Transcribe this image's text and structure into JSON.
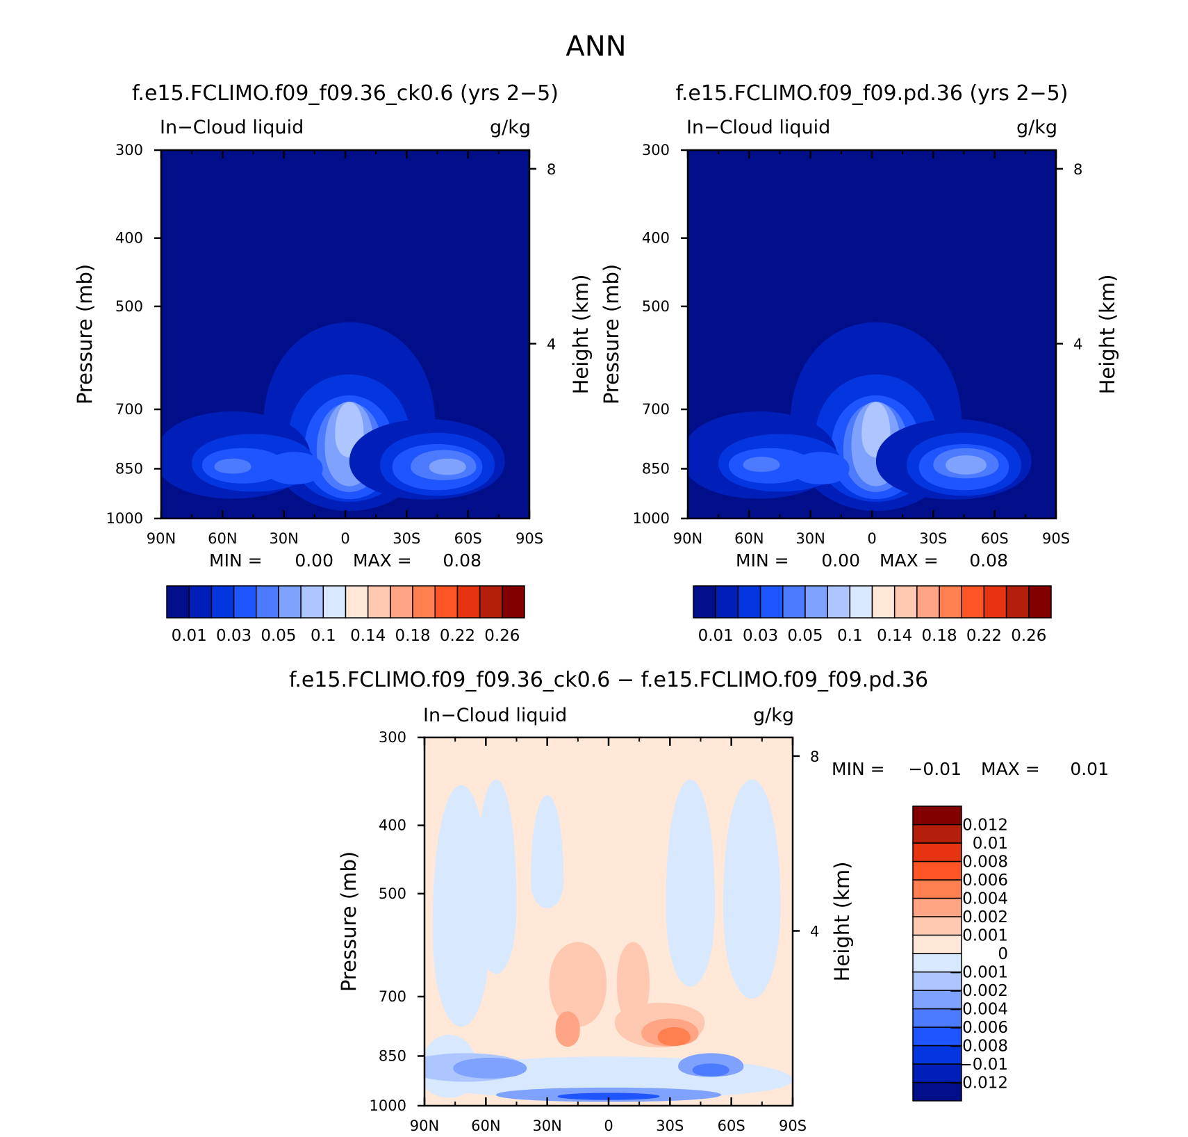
{
  "figure": {
    "title": "ANN",
    "colors": {
      "abs_scale": [
        "#000f89",
        "#001fb8",
        "#0436e0",
        "#1f55ff",
        "#4d7bff",
        "#7fa2ff",
        "#adc6ff",
        "#d7e8ff",
        "#ffe8d8",
        "#ffc8b0",
        "#ffa585",
        "#ff7f51",
        "#ff5526",
        "#e63410",
        "#b41f0c",
        "#820000"
      ],
      "diff_scale": [
        "#000f89",
        "#001fb8",
        "#0436e0",
        "#1f55ff",
        "#4d7bff",
        "#7fa2ff",
        "#adc6ff",
        "#d7e8ff",
        "#ffe8d8",
        "#ffc8b0",
        "#ffa585",
        "#ff7f51",
        "#ff5526",
        "#e63410",
        "#b41f0c",
        "#820000"
      ]
    }
  },
  "chart_data": [
    {
      "type": "heatmap",
      "id": "test",
      "title": "f.e15.FCLIMO.f09_f09.36_ck0.6 (yrs 2−5)",
      "left_string": "In−Cloud liquid",
      "right_string": "g/kg",
      "xlabel": "",
      "ylabel": "Pressure (mb)",
      "y2label": "Height (km)",
      "x_ticks": [
        "90N",
        "60N",
        "30N",
        "0",
        "30S",
        "60S",
        "90S"
      ],
      "x_range": [
        90,
        -90
      ],
      "y_ticks": [
        300,
        400,
        500,
        700,
        850,
        1000
      ],
      "y_range": [
        300,
        1000
      ],
      "y_scale": "log",
      "y2_ticks": [
        8,
        4
      ],
      "min_label": "MIN =",
      "min_value": "0.00",
      "max_label": "MAX =",
      "max_value": "0.08",
      "colorbar_labels": [
        "0.01",
        "0.03",
        "0.05",
        "0.1",
        "0.14",
        "0.18",
        "0.22",
        "0.26"
      ],
      "background_level": 0,
      "features": [
        {
          "lat": -2,
          "p": 740,
          "level": 1,
          "rx": 42,
          "rtop": 270,
          "rbot": 330
        },
        {
          "lat": -2,
          "p": 780,
          "level": 2,
          "rx": 30,
          "rtop": 200,
          "rbot": 230
        },
        {
          "lat": -2,
          "p": 800,
          "level": 3,
          "rx": 22,
          "rtop": 170,
          "rbot": 190
        },
        {
          "lat": -2,
          "p": 800,
          "level": 4,
          "rx": 16,
          "rtop": 150,
          "rbot": 160
        },
        {
          "lat": -2,
          "p": 790,
          "level": 5,
          "rx": 12,
          "rtop": 140,
          "rbot": 150
        },
        {
          "lat": -2,
          "p": 760,
          "level": 6,
          "rx": 7,
          "rtop": 100,
          "rbot": 80
        },
        {
          "lat": -40,
          "p": 830,
          "level": 1,
          "rx": 38,
          "rtop": 140,
          "rbot": 150
        },
        {
          "lat": -45,
          "p": 840,
          "level": 2,
          "rx": 28,
          "rtop": 110,
          "rbot": 120
        },
        {
          "lat": -45,
          "p": 845,
          "level": 3,
          "rx": 22,
          "rtop": 80,
          "rbot": 90
        },
        {
          "lat": -48,
          "p": 845,
          "level": 4,
          "rx": 16,
          "rtop": 60,
          "rbot": 50
        },
        {
          "lat": -50,
          "p": 845,
          "level": 5,
          "rx": 9,
          "rtop": 30,
          "rbot": 30
        },
        {
          "lat": 55,
          "p": 820,
          "level": 1,
          "rx": 38,
          "rtop": 150,
          "rbot": 160
        },
        {
          "lat": 45,
          "p": 835,
          "level": 2,
          "rx": 30,
          "rtop": 100,
          "rbot": 110
        },
        {
          "lat": 50,
          "p": 840,
          "level": 3,
          "rx": 20,
          "rtop": 60,
          "rbot": 70
        },
        {
          "lat": 55,
          "p": 845,
          "level": 4,
          "rx": 9,
          "rtop": 30,
          "rbot": 25
        },
        {
          "lat": 25,
          "p": 850,
          "level": 3,
          "rx": 14,
          "rtop": 60,
          "rbot": 60
        }
      ]
    },
    {
      "type": "heatmap",
      "id": "control",
      "title": "f.e15.FCLIMO.f09_f09.pd.36 (yrs 2−5)",
      "left_string": "In−Cloud liquid",
      "right_string": "g/kg",
      "xlabel": "",
      "ylabel": "Pressure (mb)",
      "y2label": "Height (km)",
      "x_ticks": [
        "90N",
        "60N",
        "30N",
        "0",
        "30S",
        "60S",
        "90S"
      ],
      "x_range": [
        90,
        -90
      ],
      "y_ticks": [
        300,
        400,
        500,
        700,
        850,
        1000
      ],
      "y_range": [
        300,
        1000
      ],
      "y_scale": "log",
      "y2_ticks": [
        8,
        4
      ],
      "min_label": "MIN =",
      "min_value": "0.00",
      "max_label": "MAX =",
      "max_value": "0.08",
      "colorbar_labels": [
        "0.01",
        "0.03",
        "0.05",
        "0.1",
        "0.14",
        "0.18",
        "0.22",
        "0.26"
      ],
      "background_level": 0,
      "features": [
        {
          "lat": -2,
          "p": 740,
          "level": 1,
          "rx": 42,
          "rtop": 270,
          "rbot": 330
        },
        {
          "lat": -2,
          "p": 780,
          "level": 2,
          "rx": 30,
          "rtop": 200,
          "rbot": 230
        },
        {
          "lat": -2,
          "p": 800,
          "level": 3,
          "rx": 22,
          "rtop": 170,
          "rbot": 190
        },
        {
          "lat": -2,
          "p": 800,
          "level": 4,
          "rx": 16,
          "rtop": 150,
          "rbot": 160
        },
        {
          "lat": -2,
          "p": 790,
          "level": 5,
          "rx": 12,
          "rtop": 140,
          "rbot": 150
        },
        {
          "lat": -2,
          "p": 760,
          "level": 6,
          "rx": 7,
          "rtop": 100,
          "rbot": 80
        },
        {
          "lat": -40,
          "p": 830,
          "level": 1,
          "rx": 38,
          "rtop": 140,
          "rbot": 150
        },
        {
          "lat": -45,
          "p": 840,
          "level": 2,
          "rx": 28,
          "rtop": 110,
          "rbot": 120
        },
        {
          "lat": -45,
          "p": 845,
          "level": 3,
          "rx": 22,
          "rtop": 80,
          "rbot": 90
        },
        {
          "lat": -46,
          "p": 840,
          "level": 4,
          "rx": 16,
          "rtop": 60,
          "rbot": 50
        },
        {
          "lat": -46,
          "p": 840,
          "level": 5,
          "rx": 10,
          "rtop": 35,
          "rbot": 35
        },
        {
          "lat": 55,
          "p": 820,
          "level": 1,
          "rx": 38,
          "rtop": 150,
          "rbot": 160
        },
        {
          "lat": 45,
          "p": 835,
          "level": 2,
          "rx": 30,
          "rtop": 100,
          "rbot": 110
        },
        {
          "lat": 50,
          "p": 840,
          "level": 3,
          "rx": 20,
          "rtop": 60,
          "rbot": 70
        },
        {
          "lat": 54,
          "p": 840,
          "level": 4,
          "rx": 9,
          "rtop": 30,
          "rbot": 25
        },
        {
          "lat": 25,
          "p": 850,
          "level": 3,
          "rx": 14,
          "rtop": 60,
          "rbot": 60
        }
      ]
    },
    {
      "type": "heatmap",
      "id": "difference",
      "title": "f.e15.FCLIMO.f09_f09.36_ck0.6 − f.e15.FCLIMO.f09_f09.pd.36",
      "left_string": "In−Cloud liquid",
      "right_string": "g/kg",
      "xlabel": "",
      "ylabel": "Pressure (mb)",
      "y2label": "Height (km)",
      "x_ticks": [
        "90N",
        "60N",
        "30N",
        "0",
        "30S",
        "60S",
        "90S"
      ],
      "x_range": [
        90,
        -90
      ],
      "y_ticks": [
        300,
        400,
        500,
        700,
        850,
        1000
      ],
      "y_range": [
        300,
        1000
      ],
      "y_scale": "log",
      "y2_ticks": [
        8,
        4
      ],
      "min_label": "MIN =",
      "min_value": "−0.01",
      "max_label": "MAX =",
      "max_value": "0.01",
      "colorbar_labels": [
        "0.012",
        "0.01",
        "0.008",
        "0.006",
        "0.004",
        "0.002",
        "0.001",
        "0",
        "−0.001",
        "−0.002",
        "−0.004",
        "−0.006",
        "−0.008",
        "−0.01",
        "−0.012"
      ],
      "background_level": 8,
      "features": [
        {
          "lat": 72,
          "p": 560,
          "level": 7,
          "rx": 14,
          "rtop": 300,
          "rbot": 300
        },
        {
          "lat": 55,
          "p": 520,
          "level": 7,
          "rx": 10,
          "rtop": 260,
          "rbot": 180
        },
        {
          "lat": 30,
          "p": 480,
          "level": 7,
          "rx": 8,
          "rtop": 150,
          "rbot": 60
        },
        {
          "lat": -40,
          "p": 520,
          "level": 7,
          "rx": 12,
          "rtop": 240,
          "rbot": 220
        },
        {
          "lat": -70,
          "p": 520,
          "level": 7,
          "rx": 14,
          "rtop": 240,
          "rbot": 260
        },
        {
          "lat": 78,
          "p": 900,
          "level": 7,
          "rx": 14,
          "rtop": 140,
          "rbot": 100
        },
        {
          "lat": 0,
          "p": 920,
          "level": 7,
          "rx": 90,
          "rtop": 90,
          "rbot": 80
        },
        {
          "lat": 15,
          "p": 670,
          "level": 9,
          "rx": 14,
          "rtop": 110,
          "rbot": 140
        },
        {
          "lat": -12,
          "p": 670,
          "level": 9,
          "rx": 8,
          "rtop": 110,
          "rbot": 130
        },
        {
          "lat": -25,
          "p": 760,
          "level": 9,
          "rx": 22,
          "rtop": 60,
          "rbot": 90
        },
        {
          "lat": 20,
          "p": 780,
          "level": 10,
          "rx": 6,
          "rtop": 60,
          "rbot": 60
        },
        {
          "lat": -30,
          "p": 790,
          "level": 10,
          "rx": 14,
          "rtop": 50,
          "rbot": 45
        },
        {
          "lat": -32,
          "p": 800,
          "level": 11,
          "rx": 8,
          "rtop": 35,
          "rbot": 30
        },
        {
          "lat": 70,
          "p": 880,
          "level": 6,
          "rx": 28,
          "rtop": 50,
          "rbot": 60
        },
        {
          "lat": 58,
          "p": 885,
          "level": 5,
          "rx": 18,
          "rtop": 40,
          "rbot": 40
        },
        {
          "lat": -50,
          "p": 880,
          "level": 5,
          "rx": 16,
          "rtop": 50,
          "rbot": 40
        },
        {
          "lat": -50,
          "p": 890,
          "level": 4,
          "rx": 9,
          "rtop": 25,
          "rbot": 25
        },
        {
          "lat": 0,
          "p": 965,
          "level": 5,
          "rx": 55,
          "rtop": 30,
          "rbot": 30
        },
        {
          "lat": 0,
          "p": 970,
          "level": 3,
          "rx": 25,
          "rtop": 15,
          "rbot": 15
        }
      ]
    }
  ]
}
